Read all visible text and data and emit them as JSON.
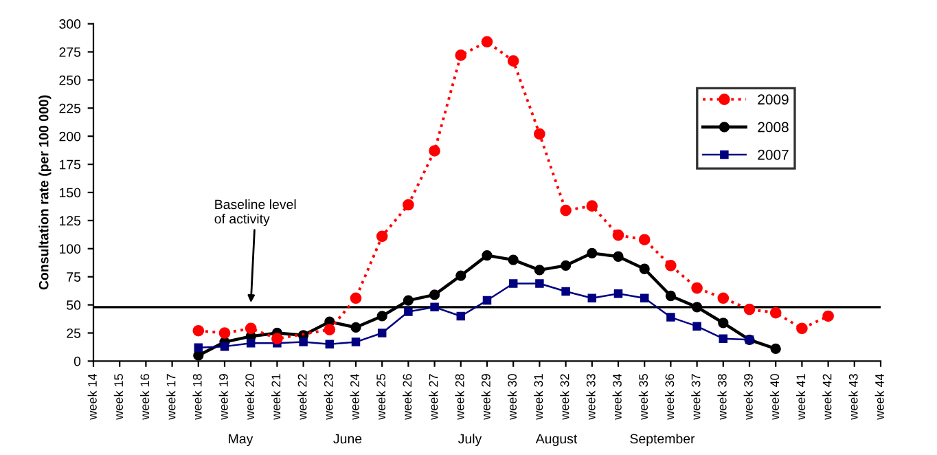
{
  "chart_data": {
    "type": "line",
    "ylabel": "Consultation rate (per 100 000)",
    "categories": [
      "week 14",
      "week 15",
      "week 16",
      "week 17",
      "week 18",
      "week 19",
      "week 20",
      "week 21",
      "week 22",
      "week 23",
      "week 24",
      "week 25",
      "week 26",
      "week 27",
      "week 28",
      "week 29",
      "week 30",
      "week 31",
      "week 32",
      "week 33",
      "week 34",
      "week 35",
      "week 36",
      "week 37",
      "week 38",
      "week 39",
      "week 40",
      "week 41",
      "week 42",
      "week 43",
      "week 44"
    ],
    "series": [
      {
        "name": "2009",
        "color": "#ff0000",
        "marker": "circle",
        "line_style": "dotted",
        "values": [
          null,
          null,
          null,
          null,
          27,
          25,
          29,
          20,
          null,
          28,
          56,
          111,
          139,
          187,
          272,
          284,
          267,
          202,
          134,
          138,
          112,
          108,
          85,
          65,
          56,
          46,
          43,
          29,
          40,
          null,
          null
        ]
      },
      {
        "name": "2008",
        "color": "#000000",
        "marker": "circle",
        "line_style": "solid",
        "values": [
          null,
          null,
          null,
          null,
          5,
          17,
          22,
          25,
          23,
          35,
          30,
          40,
          54,
          59,
          76,
          94,
          90,
          81,
          85,
          96,
          93,
          82,
          58,
          48,
          34,
          19,
          11,
          null,
          null,
          null,
          null
        ]
      },
      {
        "name": "2007",
        "color": "#000080",
        "marker": "square",
        "line_style": "solid",
        "values": [
          null,
          null,
          null,
          null,
          12,
          13,
          16,
          16,
          17,
          15,
          17,
          25,
          44,
          48,
          40,
          54,
          69,
          69,
          62,
          56,
          60,
          56,
          39,
          31,
          20,
          19,
          null,
          null,
          null,
          null,
          null
        ]
      }
    ],
    "ylim": [
      0,
      300
    ],
    "yticks": [
      0,
      25,
      50,
      75,
      100,
      125,
      150,
      175,
      200,
      225,
      250,
      275,
      300
    ],
    "ref_lines": [
      {
        "axis": "y",
        "value": 48,
        "label": "Baseline level\nof activity",
        "color": "#000000",
        "line_style": "solid"
      }
    ],
    "annotations": [
      "May",
      "June",
      "July",
      "August",
      "September"
    ],
    "grid": false,
    "legend": "top right"
  }
}
